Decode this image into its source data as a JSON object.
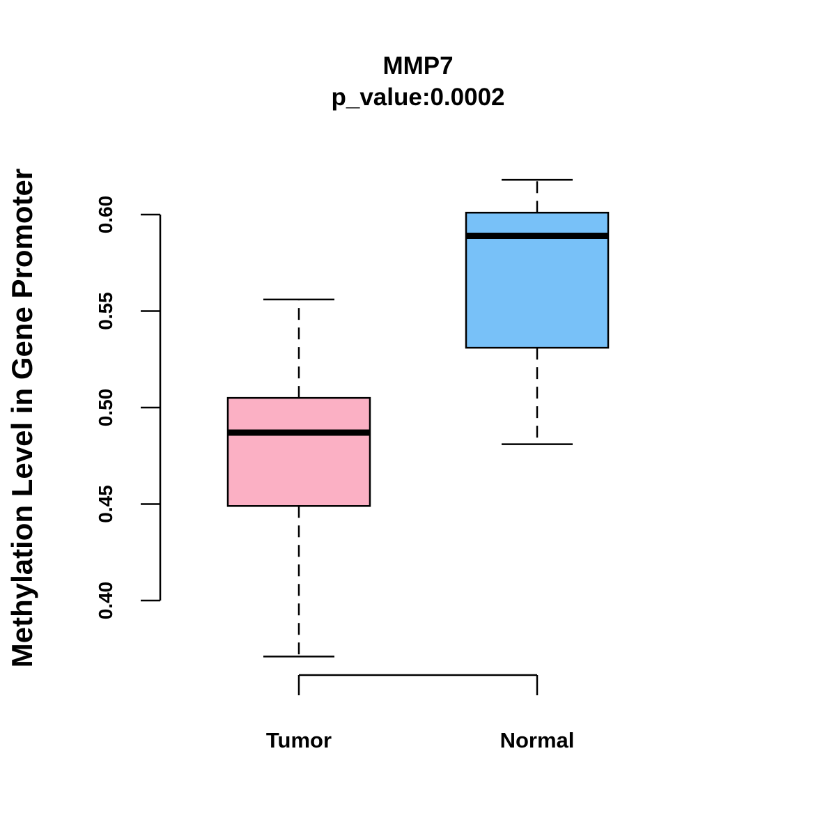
{
  "chart_data": {
    "type": "boxplot",
    "title": "MMP7",
    "subtitle": "p_value:0.0002",
    "xlabel": "",
    "ylabel": "Methylation Level in Gene Promoter",
    "ylim": [
      0.4,
      0.6
    ],
    "yticks": [
      0.4,
      0.45,
      0.5,
      0.55,
      0.6
    ],
    "ytick_labels": [
      "0.40",
      "0.45",
      "0.50",
      "0.55",
      "0.60"
    ],
    "grid": false,
    "groups": [
      {
        "name": "Tumor",
        "color": "#fbb0c4",
        "whisker_low": 0.371,
        "q1": 0.449,
        "median": 0.487,
        "q3": 0.505,
        "whisker_high": 0.556
      },
      {
        "name": "Normal",
        "color": "#78c1f8",
        "whisker_low": 0.481,
        "q1": 0.531,
        "median": 0.589,
        "q3": 0.601,
        "whisker_high": 0.618
      }
    ]
  }
}
